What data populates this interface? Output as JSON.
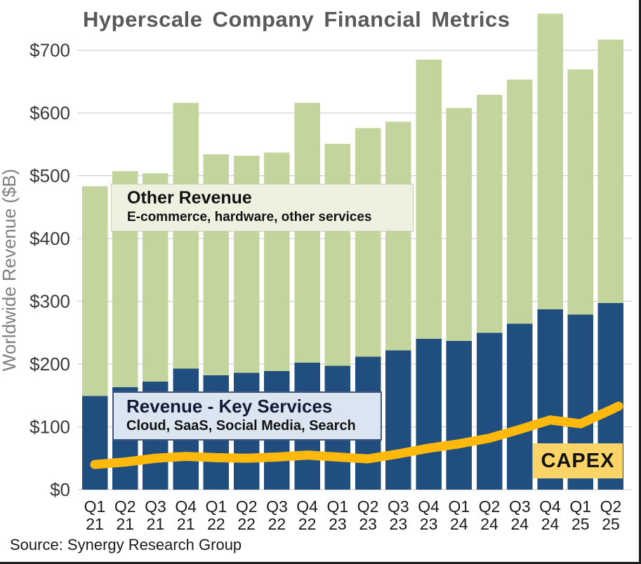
{
  "title": "Hyperscale Company Financial Metrics",
  "source": "Source: Synergy Research Group",
  "y_axis": {
    "label": "Worldwide Revenue ($B)",
    "tick_labels": [
      "$0",
      "$100",
      "$200",
      "$300",
      "$400",
      "$500",
      "$600",
      "$700"
    ],
    "tick_values": [
      0,
      100,
      200,
      300,
      400,
      500,
      600,
      700
    ]
  },
  "annotations": {
    "other_revenue": {
      "title": "Other Revenue",
      "subtitle": "E-commerce, hardware, other services"
    },
    "key_services": {
      "title": "Revenue - Key Services",
      "subtitle": "Cloud, SaaS, Social Media, Search"
    },
    "capex_label": "CAPEX"
  },
  "colors": {
    "key_services_bar": "#1f4e7f",
    "other_revenue_bar": "#c4d49d",
    "capex_line": "#ffb90c",
    "capex_box_bg": "#fad466",
    "other_box_bg": "#eef0e0",
    "key_box_bg": "#dbe5f2",
    "title_text": "#595959",
    "axis_text": "#3a3a3a",
    "gridline": "#c9c9c9"
  },
  "chart_data": {
    "type": "bar",
    "stacked": true,
    "title": "Hyperscale Company Financial Metrics",
    "xlabel": "",
    "ylabel": "Worldwide Revenue ($B)",
    "ylim": [
      0,
      780
    ],
    "grid": true,
    "legend_position": "annotation boxes inside plot",
    "categories": [
      "Q1 21",
      "Q2 21",
      "Q3 21",
      "Q4 21",
      "Q1 22",
      "Q2 22",
      "Q3 22",
      "Q4 22",
      "Q1 23",
      "Q2 23",
      "Q3 23",
      "Q4 23",
      "Q1 24",
      "Q2 24",
      "Q3 24",
      "Q4 24",
      "Q1 25",
      "Q2 25"
    ],
    "series": [
      {
        "name": "Revenue - Key Services",
        "kind": "bar",
        "color": "#1f4e7f",
        "values": [
          149,
          163,
          172,
          193,
          182,
          186,
          189,
          202,
          197,
          212,
          222,
          240,
          237,
          250,
          264,
          287,
          279,
          297
        ]
      },
      {
        "name": "Other Revenue",
        "kind": "bar",
        "color": "#c4d49d",
        "values": [
          334,
          344,
          332,
          423,
          352,
          346,
          348,
          414,
          354,
          364,
          364,
          445,
          371,
          379,
          389,
          471,
          390,
          420
        ]
      },
      {
        "name": "CAPEX",
        "kind": "line",
        "color": "#ffb90c",
        "values": [
          40,
          44,
          50,
          53,
          51,
          50,
          52,
          55,
          52,
          49,
          57,
          66,
          73,
          82,
          96,
          111,
          105,
          127
        ]
      }
    ]
  }
}
